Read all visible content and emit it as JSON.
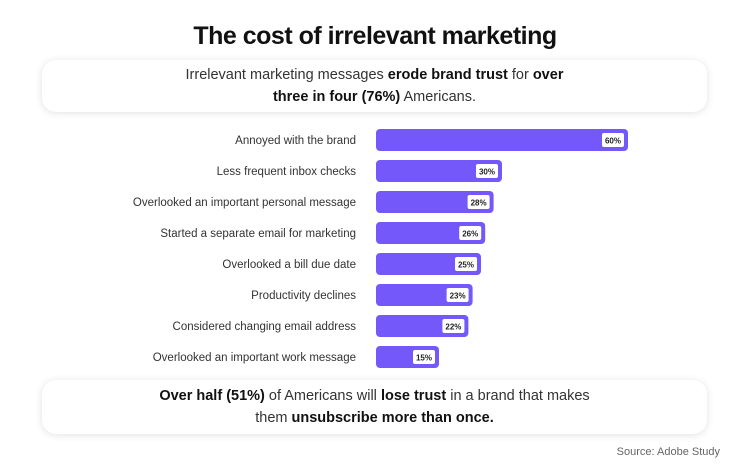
{
  "title": "The cost of irrelevant marketing",
  "top_card": {
    "line1": [
      {
        "t": "Irrelevant marketing messages ",
        "b": false
      },
      {
        "t": "erode brand trust",
        "b": true
      },
      {
        "t": " for ",
        "b": false
      },
      {
        "t": "over",
        "b": true
      }
    ],
    "line2": [
      {
        "t": "three in four (76%)",
        "b": true
      },
      {
        "t": " Americans.",
        "b": false
      }
    ]
  },
  "bottom_card": {
    "line1": [
      {
        "t": "Over half (51%)",
        "b": true
      },
      {
        "t": " of Americans will ",
        "b": false
      },
      {
        "t": "lose trust",
        "b": true
      },
      {
        "t": " in a brand that makes",
        "b": false
      }
    ],
    "line2": [
      {
        "t": "them ",
        "b": false
      },
      {
        "t": "unsubscribe more than once.",
        "b": true
      }
    ]
  },
  "source": "Source: Adobe Study",
  "chart_data": {
    "type": "bar",
    "orientation": "horizontal",
    "categories": [
      "Annoyed with the brand",
      "Less frequent inbox checks",
      "Overlooked an important personal message",
      "Started a separate email for marketing",
      "Overlooked a bill due date",
      "Productivity declines",
      "Considered changing email address",
      "Overlooked an important work message"
    ],
    "values": [
      60,
      30,
      28,
      26,
      25,
      23,
      22,
      15
    ],
    "value_labels": [
      "60%",
      "30%",
      "28%",
      "26%",
      "25%",
      "23%",
      "22%",
      "15%"
    ],
    "unit": "%",
    "bar_color": "#7458FA",
    "grid": false
  }
}
